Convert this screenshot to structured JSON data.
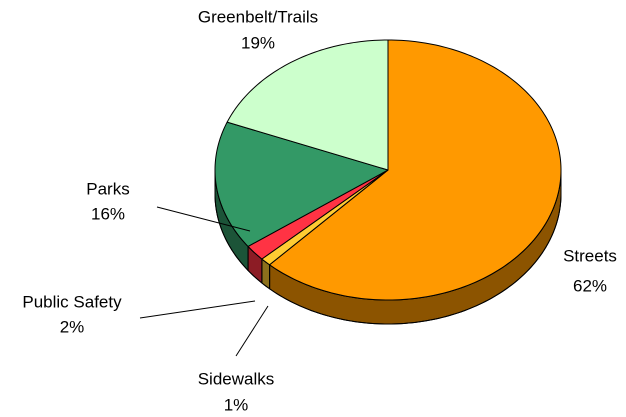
{
  "chart_data": {
    "type": "pie",
    "categories": [
      "Streets",
      "Sidewalks",
      "Public Safety",
      "Parks",
      "Greenbelt/Trails"
    ],
    "values": [
      62,
      1,
      2,
      16,
      19
    ],
    "value_labels": [
      "62%",
      "1%",
      "2%",
      "16%",
      "19%"
    ],
    "colors": [
      "#ff9900",
      "#ffcc33",
      "#ff3344",
      "#339966",
      "#ccffcc"
    ]
  }
}
